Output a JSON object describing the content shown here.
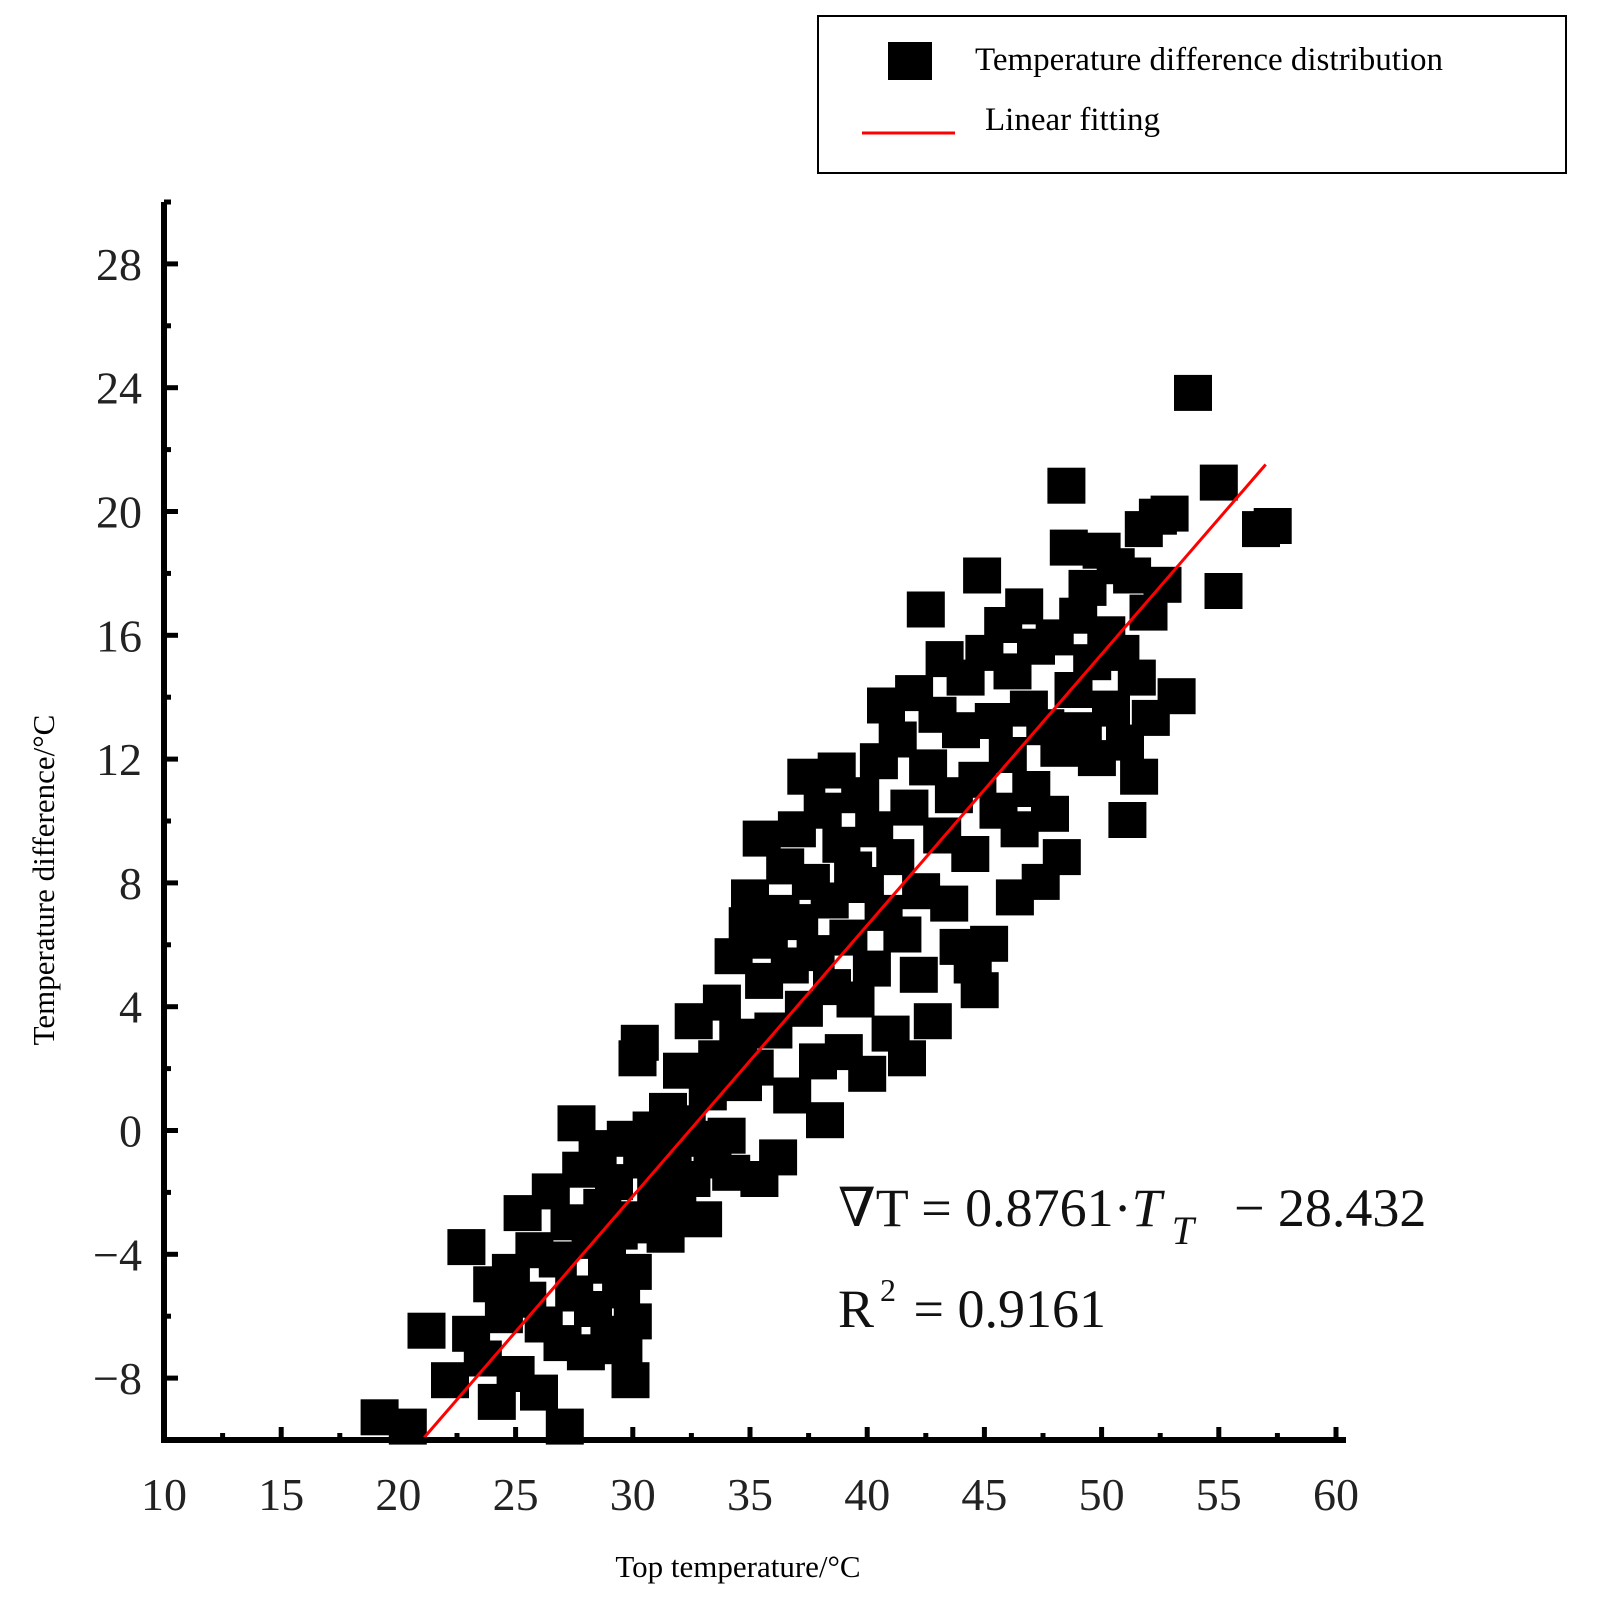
{
  "chart_data": {
    "type": "scatter",
    "xlabel": "Top temperature/°C",
    "ylabel": "Temperature difference/°C",
    "xlim": [
      10,
      60
    ],
    "ylim": [
      -10,
      30
    ],
    "x_ticks": [
      10,
      15,
      20,
      25,
      30,
      35,
      40,
      45,
      50,
      55,
      60
    ],
    "x_tick_labels": [
      "10",
      "15",
      "20",
      "25",
      "30",
      "35",
      "40",
      "45",
      "50",
      "55",
      "60"
    ],
    "y_ticks": [
      -8,
      -4,
      0,
      4,
      8,
      12,
      16,
      20,
      24,
      28
    ],
    "y_tick_labels": [
      "−8",
      "−4",
      "0",
      "4",
      "8",
      "12",
      "16",
      "20",
      "24",
      "28"
    ],
    "grid": false,
    "legend_position": "top-right",
    "series": [
      {
        "name": "Temperature difference distribution",
        "kind": "scatter",
        "marker": "square",
        "color": "#000000",
        "points": [
          [
            19.2,
            -9.3
          ],
          [
            20.4,
            -9.6
          ],
          [
            21.2,
            -6.5
          ],
          [
            22.2,
            -8.1
          ],
          [
            22.9,
            -3.8
          ],
          [
            23.1,
            -6.6
          ],
          [
            23.6,
            -7.4
          ],
          [
            24.0,
            -5.0
          ],
          [
            24.2,
            -8.8
          ],
          [
            24.5,
            -6.0
          ],
          [
            24.8,
            -4.6
          ],
          [
            25.0,
            -7.9
          ],
          [
            25.3,
            -2.7
          ],
          [
            25.5,
            -5.5
          ],
          [
            25.8,
            -3.9
          ],
          [
            26.0,
            -8.5
          ],
          [
            26.2,
            -6.3
          ],
          [
            26.5,
            -2.0
          ],
          [
            26.8,
            -4.2
          ],
          [
            27.0,
            -6.9
          ],
          [
            27.1,
            -9.6
          ],
          [
            27.3,
            -3.0
          ],
          [
            27.5,
            -5.3
          ],
          [
            27.6,
            0.2
          ],
          [
            27.8,
            -1.3
          ],
          [
            28.0,
            -7.2
          ],
          [
            28.2,
            -3.6
          ],
          [
            28.3,
            -5.8
          ],
          [
            28.5,
            -0.6
          ],
          [
            28.7,
            -2.5
          ],
          [
            28.9,
            -4.4
          ],
          [
            29.0,
            -6.6
          ],
          [
            29.2,
            -1.7
          ],
          [
            29.4,
            -3.3
          ],
          [
            29.5,
            -5.2
          ],
          [
            29.7,
            -0.3
          ],
          [
            29.9,
            -2.9
          ],
          [
            30.0,
            -4.6
          ],
          [
            30.2,
            2.3
          ],
          [
            30.3,
            2.8
          ],
          [
            29.9,
            -8.1
          ],
          [
            29.6,
            -7.0
          ],
          [
            30.0,
            -6.2
          ],
          [
            30.4,
            -1.0
          ],
          [
            30.6,
            -3.1
          ],
          [
            30.8,
            0.0
          ],
          [
            31.0,
            -2.0
          ],
          [
            31.2,
            -0.8
          ],
          [
            31.4,
            -3.4
          ],
          [
            31.5,
            0.6
          ],
          [
            31.7,
            -1.4
          ],
          [
            31.9,
            -2.6
          ],
          [
            32.1,
            1.9
          ],
          [
            32.3,
            0.2
          ],
          [
            32.5,
            -1.6
          ],
          [
            32.6,
            3.5
          ],
          [
            32.8,
            -0.3
          ],
          [
            33.0,
            -2.9
          ],
          [
            33.2,
            1.2
          ],
          [
            33.4,
            -1.0
          ],
          [
            33.6,
            2.3
          ],
          [
            33.8,
            4.1
          ],
          [
            34.0,
            -0.2
          ],
          [
            34.2,
            -1.4
          ],
          [
            34.3,
            5.6
          ],
          [
            34.5,
            3.0
          ],
          [
            34.7,
            1.5
          ],
          [
            34.9,
            6.6
          ],
          [
            35.0,
            7.5
          ],
          [
            35.2,
            2.0
          ],
          [
            35.4,
            -1.6
          ],
          [
            35.5,
            9.4
          ],
          [
            35.6,
            4.8
          ],
          [
            35.8,
            6.1
          ],
          [
            36.0,
            3.2
          ],
          [
            36.2,
            -0.9
          ],
          [
            36.3,
            7.0
          ],
          [
            36.5,
            8.5
          ],
          [
            36.7,
            5.3
          ],
          [
            36.8,
            1.1
          ],
          [
            37.0,
            9.7
          ],
          [
            37.1,
            6.7
          ],
          [
            37.3,
            3.9
          ],
          [
            37.4,
            11.4
          ],
          [
            37.6,
            8.0
          ],
          [
            37.8,
            5.7
          ],
          [
            37.9,
            2.2
          ],
          [
            38.1,
            10.3
          ],
          [
            38.2,
            0.3
          ],
          [
            38.4,
            7.4
          ],
          [
            38.5,
            4.6
          ],
          [
            38.7,
            11.6
          ],
          [
            38.9,
            9.2
          ],
          [
            39.0,
            2.5
          ],
          [
            39.2,
            6.2
          ],
          [
            39.4,
            8.4
          ],
          [
            39.5,
            4.2
          ],
          [
            39.7,
            10.8
          ],
          [
            39.9,
            7.9
          ],
          [
            40.0,
            1.8
          ],
          [
            40.2,
            5.2
          ],
          [
            40.3,
            9.7
          ],
          [
            40.5,
            11.9
          ],
          [
            40.7,
            7.0
          ],
          [
            40.8,
            13.7
          ],
          [
            41.0,
            3.1
          ],
          [
            41.2,
            8.8
          ],
          [
            41.3,
            12.6
          ],
          [
            41.5,
            6.3
          ],
          [
            41.7,
            2.3
          ],
          [
            41.8,
            10.4
          ],
          [
            42.0,
            14.1
          ],
          [
            42.2,
            5.0
          ],
          [
            42.3,
            7.7
          ],
          [
            42.5,
            16.8
          ],
          [
            42.6,
            11.7
          ],
          [
            42.8,
            3.5
          ],
          [
            43.0,
            13.4
          ],
          [
            43.2,
            9.5
          ],
          [
            43.3,
            15.2
          ],
          [
            43.5,
            7.3
          ],
          [
            43.7,
            10.8
          ],
          [
            43.9,
            5.9
          ],
          [
            44.0,
            12.9
          ],
          [
            44.2,
            14.6
          ],
          [
            44.4,
            8.9
          ],
          [
            44.5,
            5.3
          ],
          [
            44.7,
            11.3
          ],
          [
            44.8,
            4.5
          ],
          [
            44.9,
            17.9
          ],
          [
            45.0,
            15.4
          ],
          [
            45.2,
            6.0
          ],
          [
            45.4,
            13.2
          ],
          [
            45.6,
            10.3
          ],
          [
            45.8,
            16.3
          ],
          [
            46.0,
            12.1
          ],
          [
            46.2,
            14.8
          ],
          [
            46.3,
            7.5
          ],
          [
            46.5,
            9.7
          ],
          [
            46.7,
            16.9
          ],
          [
            46.9,
            13.6
          ],
          [
            47.0,
            11.0
          ],
          [
            47.2,
            15.6
          ],
          [
            47.4,
            8.0
          ],
          [
            47.6,
            13.0
          ],
          [
            47.8,
            10.2
          ],
          [
            48.0,
            15.9
          ],
          [
            48.2,
            12.3
          ],
          [
            48.3,
            8.8
          ],
          [
            48.5,
            20.8
          ],
          [
            48.6,
            18.8
          ],
          [
            48.8,
            14.2
          ],
          [
            49.0,
            16.6
          ],
          [
            49.2,
            12.9
          ],
          [
            49.4,
            17.5
          ],
          [
            49.6,
            15.1
          ],
          [
            49.8,
            12.0
          ],
          [
            50.0,
            18.7
          ],
          [
            50.2,
            16.0
          ],
          [
            50.4,
            13.6
          ],
          [
            50.6,
            18.2
          ],
          [
            50.8,
            15.4
          ],
          [
            51.0,
            12.5
          ],
          [
            51.1,
            10.0
          ],
          [
            51.3,
            17.9
          ],
          [
            51.5,
            14.6
          ],
          [
            51.6,
            11.4
          ],
          [
            51.8,
            19.4
          ],
          [
            52.0,
            16.7
          ],
          [
            52.1,
            13.3
          ],
          [
            52.4,
            19.8
          ],
          [
            52.6,
            17.6
          ],
          [
            52.9,
            19.9
          ],
          [
            53.2,
            14.0
          ],
          [
            53.9,
            23.8
          ],
          [
            55.0,
            20.9
          ],
          [
            55.2,
            17.4
          ],
          [
            56.8,
            19.4
          ],
          [
            57.3,
            19.5
          ]
        ]
      },
      {
        "name": "Linear fitting",
        "kind": "line",
        "color": "#ff0000",
        "x": [
          21.1,
          57.0
        ],
        "y": [
          -9.92,
          21.52
        ]
      }
    ],
    "annotations": {
      "equation_lhs": "∇T = 0.8761·",
      "equation_var": "T",
      "equation_sub": "T",
      "equation_rhs": "− 28.432",
      "r2_base": "R",
      "r2_sup": "2",
      "r2_rhs": " = 0.9161"
    }
  }
}
